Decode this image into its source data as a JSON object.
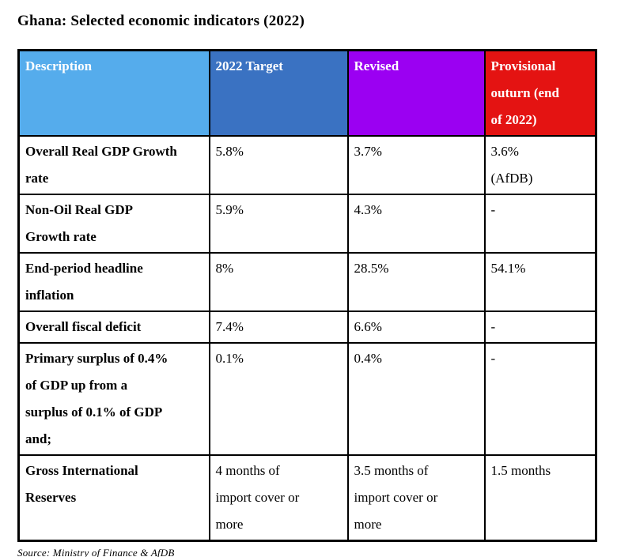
{
  "page": {
    "title": "Ghana: Selected economic indicators (2022)",
    "source_note": "Source: Ministry of  Finance & AfDB"
  },
  "colors": {
    "header_text": "#FFFFFF",
    "border": "#000000",
    "description_header_bg": "#55ACEC",
    "target_header_bg": "#3A72C2",
    "revised_header_bg": "#9B00F2",
    "provisional_header_bg": "#E41312"
  },
  "table": {
    "columns": [
      {
        "id": "description",
        "label": "Description",
        "bg": "#55ACEC"
      },
      {
        "id": "target",
        "label": "2022 Target",
        "bg": "#3A72C2"
      },
      {
        "id": "revised",
        "label": "Revised",
        "bg": "#9B00F2"
      },
      {
        "id": "provisional",
        "label": "Provisional\nouturn (end\nof 2022)",
        "bg": "#E41312"
      }
    ],
    "rows": [
      {
        "cells": [
          "Overall Real GDP Growth\nrate",
          "5.8%",
          "3.7%",
          "3.6%\n(AfDB)"
        ]
      },
      {
        "cells": [
          "Non-Oil Real GDP\nGrowth rate",
          "5.9%",
          "4.3%",
          "-"
        ]
      },
      {
        "cells": [
          "End-period headline\ninflation",
          "8%",
          "28.5%",
          "54.1%"
        ]
      },
      {
        "cells": [
          "Overall fiscal deficit",
          "7.4%",
          "6.6%",
          "-"
        ]
      },
      {
        "cells": [
          "Primary surplus of 0.4%\nof  GDP up from a\nsurplus of 0.1% of GDP\nand;",
          "0.1%",
          "0.4%",
          "-"
        ]
      },
      {
        "cells": [
          "Gross International\nReserves",
          "4 months of\nimport cover or\nmore",
          "3.5 months of\nimport cover or\nmore",
          "1.5 months"
        ]
      }
    ]
  }
}
